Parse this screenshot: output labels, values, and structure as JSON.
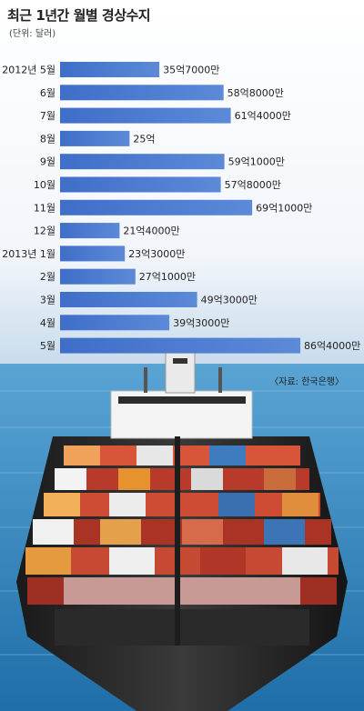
{
  "title": "최근 1년간 월별 경상수지",
  "unit": "(단위: 달러)",
  "source": "〈자료: 한국은행〉",
  "colors": {
    "bar_start": "#3f6ec8",
    "bar_end": "#5c8ad8",
    "sky_top": "#e9f1f8",
    "sea": "#3c8fc6"
  },
  "chart_data": {
    "type": "bar",
    "orientation": "horizontal",
    "title": "최근 1년간 월별 경상수지",
    "ylabel": "(단위: 달러)",
    "categories": [
      "2012년 5월",
      "6월",
      "7월",
      "8월",
      "9월",
      "10월",
      "11월",
      "12월",
      "2013년 1월",
      "2월",
      "3월",
      "4월",
      "5월"
    ],
    "values": [
      3570000000,
      5880000000,
      6140000000,
      2500000000,
      5910000000,
      5780000000,
      6910000000,
      2140000000,
      2330000000,
      2710000000,
      4930000000,
      3930000000,
      8640000000
    ],
    "value_labels": [
      "35억7000만",
      "58억8000만",
      "61억4000만",
      "25억",
      "59억1000만",
      "57억8000만",
      "69억1000만",
      "21억4000만",
      "23억3000만",
      "27억1000만",
      "49억3000만",
      "39억3000만",
      "86억4000만"
    ],
    "xlim": [
      0,
      8640000000
    ]
  }
}
